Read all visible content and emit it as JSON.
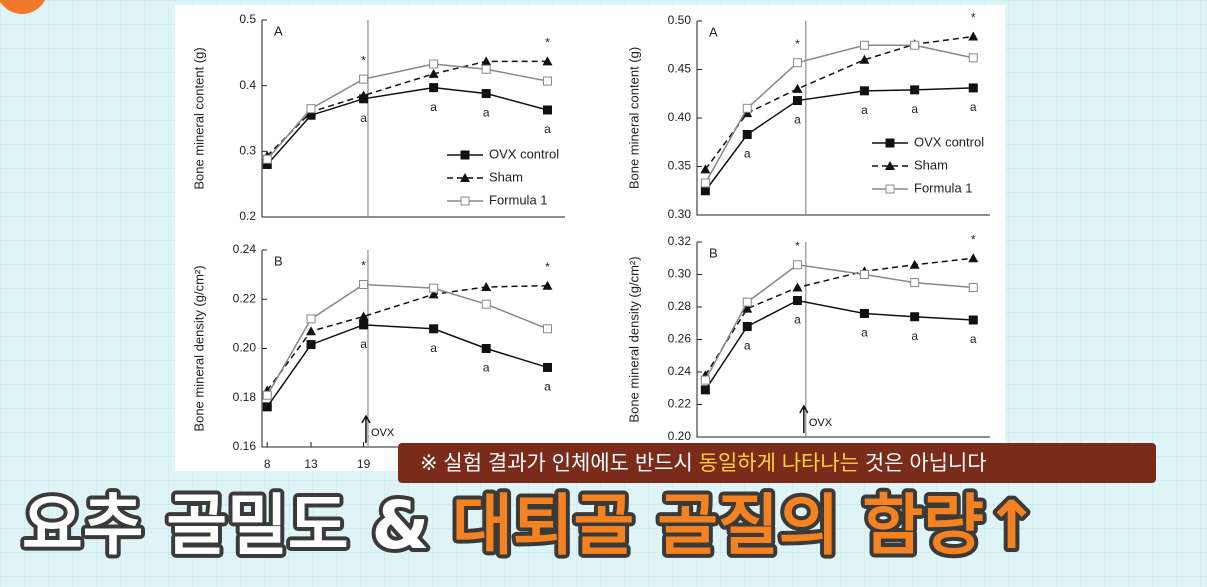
{
  "chart_data": [
    {
      "type": "line",
      "panel": "A",
      "ylabel": "Bone mineral content (g)",
      "x": [
        8,
        13,
        19,
        27,
        33,
        40
      ],
      "xlim": [
        7.4,
        42
      ],
      "ylim": [
        0.2,
        0.5
      ],
      "yticks": [
        0.2,
        0.3,
        0.4,
        0.5
      ],
      "vline": 19.5,
      "legend": "lower right",
      "series": [
        {
          "name": "OVX control",
          "color": "#111111",
          "marker": "square",
          "line": "solid",
          "values": [
            0.28,
            0.355,
            0.38,
            0.397,
            0.388,
            0.363
          ]
        },
        {
          "name": "Sham",
          "color": "#111111",
          "marker": "triangle",
          "line": "dashed",
          "values": [
            0.293,
            0.36,
            0.385,
            0.418,
            0.437,
            0.437
          ]
        },
        {
          "name": "Formula 1",
          "color": "#888888",
          "marker": "open-square",
          "line": "solid",
          "values": [
            0.288,
            0.365,
            0.41,
            0.433,
            0.425,
            0.407
          ]
        }
      ],
      "annotations": [
        {
          "x": 19,
          "text": "*",
          "side": "above"
        },
        {
          "x": 40,
          "text": "*",
          "side": "above"
        },
        {
          "x": 19,
          "text": "a",
          "side": "below"
        },
        {
          "x": 27,
          "text": "a",
          "side": "below"
        },
        {
          "x": 33,
          "text": "a",
          "side": "below"
        },
        {
          "x": 40,
          "text": "a",
          "side": "below"
        }
      ]
    },
    {
      "type": "line",
      "panel": "B",
      "ylabel": "Bone mineral density (g/cm²)",
      "x": [
        8,
        13,
        19,
        27,
        33,
        40
      ],
      "xlim": [
        7.4,
        42
      ],
      "ylim": [
        0.16,
        0.24
      ],
      "yticks": [
        0.16,
        0.18,
        {
          "value": 0.2,
          "label": "0.20"
        },
        0.22,
        0.24
      ],
      "xticks": [
        8,
        13,
        19
      ],
      "vline": 19.5,
      "vline_label": "OVX",
      "series": [
        {
          "color": "#111111",
          "marker": "square",
          "line": "solid",
          "values": [
            0.1763,
            0.2016,
            0.2096,
            0.208,
            0.2,
            0.1923
          ]
        },
        {
          "color": "#111111",
          "marker": "triangle",
          "line": "dashed",
          "values": [
            0.183,
            0.207,
            0.213,
            0.222,
            0.225,
            0.2255
          ]
        },
        {
          "color": "#888888",
          "marker": "open-square",
          "line": "solid",
          "values": [
            0.181,
            0.212,
            0.226,
            0.2245,
            0.218,
            0.208
          ]
        }
      ],
      "annotations": [
        {
          "x": 19,
          "text": "*",
          "side": "above"
        },
        {
          "x": 40,
          "text": "*",
          "side": "above"
        },
        {
          "x": 19,
          "text": "a",
          "side": "below"
        },
        {
          "x": 27,
          "text": "a",
          "side": "below"
        },
        {
          "x": 33,
          "text": "a",
          "side": "below"
        },
        {
          "x": 40,
          "text": "a",
          "side": "below"
        }
      ]
    },
    {
      "type": "line",
      "panel": "A",
      "ylabel": "Bone mineral content (g)",
      "x": [
        8,
        13,
        19,
        27,
        33,
        40
      ],
      "xlim": [
        7,
        42
      ],
      "ylim": [
        0.3,
        0.5
      ],
      "yticks": [
        {
          "value": 0.3,
          "label": "0.30"
        },
        0.35,
        {
          "value": 0.4,
          "label": "0.40"
        },
        0.45,
        {
          "value": 0.5,
          "label": "0.50"
        }
      ],
      "vline": 20,
      "legend": "center right",
      "series": [
        {
          "name": "OVX control",
          "color": "#111111",
          "marker": "square",
          "line": "solid",
          "values": [
            0.325,
            0.383,
            0.418,
            0.428,
            0.429,
            0.431
          ]
        },
        {
          "name": "Sham",
          "color": "#111111",
          "marker": "triangle",
          "line": "dashed",
          "values": [
            0.347,
            0.405,
            0.43,
            0.46,
            0.476,
            0.484
          ]
        },
        {
          "name": "Formula 1",
          "color": "#888888",
          "marker": "open-square",
          "line": "solid",
          "values": [
            0.333,
            0.41,
            0.457,
            0.475,
            0.475,
            0.462
          ]
        }
      ],
      "annotations": [
        {
          "x": 19,
          "text": "*",
          "side": "above"
        },
        {
          "x": 40,
          "text": "*",
          "side": "above"
        },
        {
          "x": 13,
          "text": "a",
          "side": "below"
        },
        {
          "x": 19,
          "text": "a",
          "side": "below"
        },
        {
          "x": 27,
          "text": "a",
          "side": "below"
        },
        {
          "x": 33,
          "text": "a",
          "side": "below"
        },
        {
          "x": 40,
          "text": "a",
          "side": "below"
        }
      ]
    },
    {
      "type": "line",
      "panel": "B",
      "ylabel": "Bone mineral density (g/cm²)",
      "x": [
        8,
        13,
        19,
        27,
        33,
        40
      ],
      "xlim": [
        7,
        42
      ],
      "ylim": [
        0.2,
        0.32
      ],
      "yticks": [
        {
          "value": 0.2,
          "label": "0.20"
        },
        0.22,
        0.24,
        0.26,
        0.28,
        {
          "value": 0.3,
          "label": "0.30"
        },
        0.32
      ],
      "vline": 20,
      "vline_label": "OVX",
      "series": [
        {
          "color": "#111111",
          "marker": "square",
          "line": "solid",
          "values": [
            0.229,
            0.268,
            0.284,
            0.276,
            0.274,
            0.272
          ]
        },
        {
          "color": "#111111",
          "marker": "triangle",
          "line": "dashed",
          "values": [
            0.238,
            0.279,
            0.292,
            0.302,
            0.306,
            0.31
          ]
        },
        {
          "color": "#888888",
          "marker": "open-square",
          "line": "solid",
          "values": [
            0.235,
            0.283,
            0.306,
            0.3,
            0.295,
            0.292
          ]
        }
      ],
      "annotations": [
        {
          "x": 19,
          "text": "*",
          "side": "above"
        },
        {
          "x": 40,
          "text": "*",
          "side": "above"
        },
        {
          "x": 13,
          "text": "a",
          "side": "below"
        },
        {
          "x": 19,
          "text": "a",
          "side": "below"
        },
        {
          "x": 27,
          "text": "a",
          "side": "below"
        },
        {
          "x": 33,
          "text": "a",
          "side": "below"
        },
        {
          "x": 40,
          "text": "a",
          "side": "below"
        }
      ]
    }
  ],
  "caption": [
    "※ 실험 결과가 인체에도 반드시",
    "동일하게 나타나는",
    "것은 아닙니다"
  ],
  "headline": [
    "요추 골밀도",
    "&",
    "대퇴골 골질의 함량↑"
  ]
}
